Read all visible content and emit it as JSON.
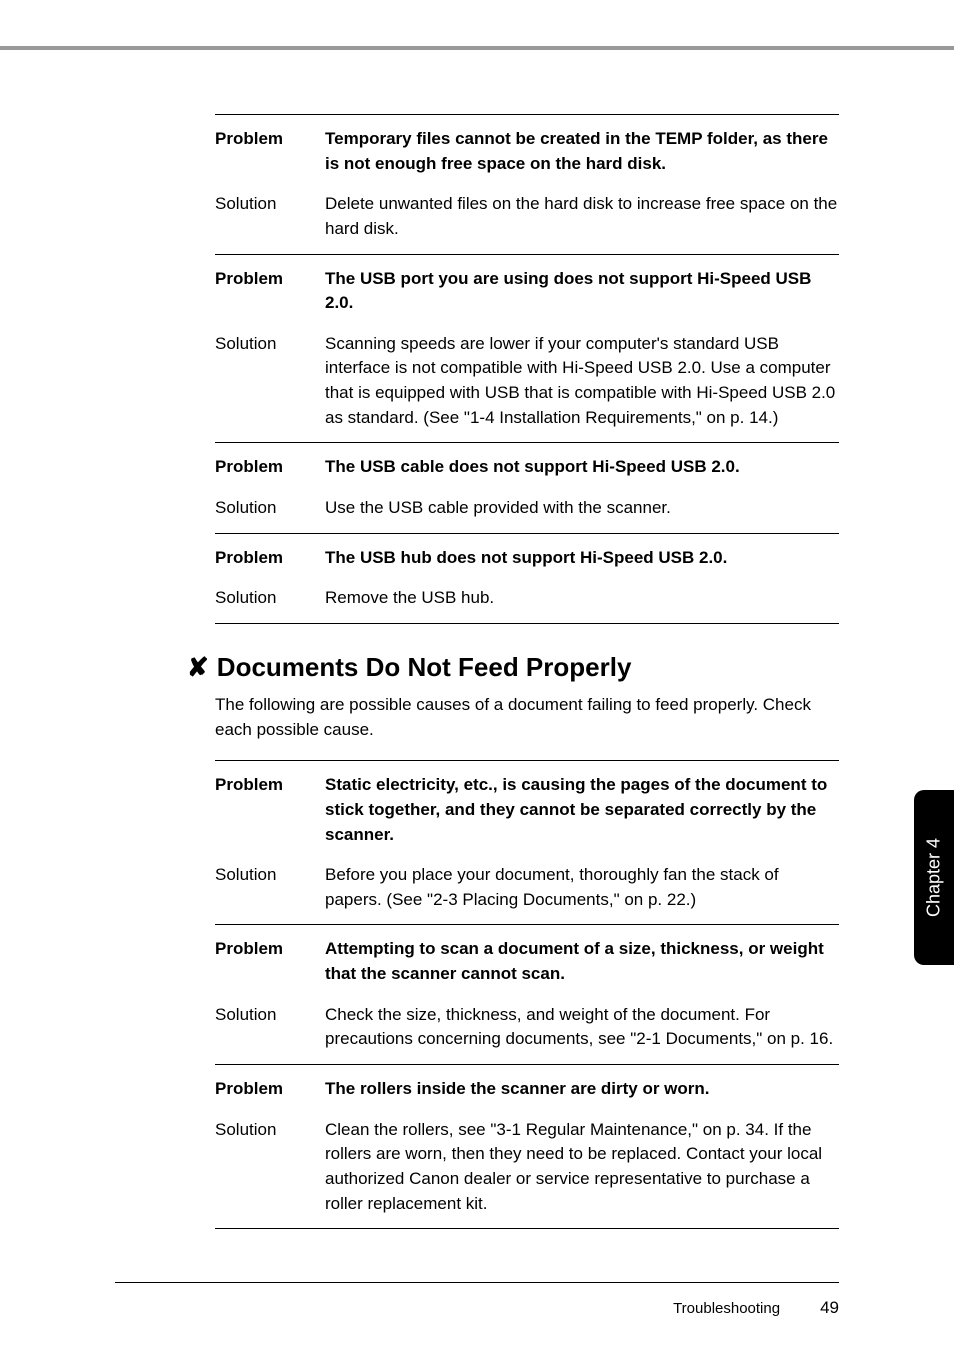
{
  "sideTab": "Chapter 4",
  "block1": {
    "rows": [
      {
        "type": "hr"
      },
      {
        "label": "Problem",
        "labelBold": true,
        "body": "Temporary files cannot be created in the TEMP folder, as there is not enough free space on the hard disk.",
        "bodyBold": true
      },
      {
        "label": "Solution",
        "labelBold": false,
        "body": "Delete unwanted files on the hard disk to increase free space on the hard disk.",
        "bodyBold": false
      },
      {
        "type": "hr"
      },
      {
        "label": "Problem",
        "labelBold": true,
        "body": "The USB port you are using does not support Hi-Speed USB 2.0.",
        "bodyBold": true
      },
      {
        "label": "Solution",
        "labelBold": false,
        "body": "Scanning speeds are lower if your computer's standard USB interface is not compatible with Hi-Speed USB 2.0. Use a computer that is equipped with USB that is compatible with Hi-Speed USB 2.0 as standard.  (See \"1-4 Installation Requirements,\" on p. 14.)",
        "bodyBold": false
      },
      {
        "type": "hr"
      },
      {
        "label": "Problem",
        "labelBold": true,
        "body": "The USB cable does not support Hi-Speed USB 2.0.",
        "bodyBold": true
      },
      {
        "label": "Solution",
        "labelBold": false,
        "body": "Use the USB cable provided with the scanner.",
        "bodyBold": false
      },
      {
        "type": "hr"
      },
      {
        "label": "Problem",
        "labelBold": true,
        "body": "The USB hub does not support Hi-Speed USB 2.0.",
        "bodyBold": true
      },
      {
        "label": "Solution",
        "labelBold": false,
        "body": "Remove the USB hub.",
        "bodyBold": false
      },
      {
        "type": "hr"
      }
    ]
  },
  "section": {
    "xMark": "✘",
    "heading": "Documents Do Not Feed Properly",
    "intro": "The following are possible causes of a document failing to feed properly. Check each possible cause."
  },
  "block2": {
    "rows": [
      {
        "type": "hr"
      },
      {
        "label": "Problem",
        "labelBold": true,
        "body": "Static electricity, etc., is causing the pages of the document to stick together, and they cannot be separated correctly by the scanner.",
        "bodyBold": true
      },
      {
        "label": "Solution",
        "labelBold": false,
        "body": "Before you place your document, thoroughly fan the stack of papers. (See \"2-3 Placing Documents,\" on p. 22.)",
        "bodyBold": false
      },
      {
        "type": "hr"
      },
      {
        "label": "Problem",
        "labelBold": true,
        "body": "Attempting to scan a document of a size, thickness, or weight that the scanner cannot scan.",
        "bodyBold": true
      },
      {
        "label": "Solution",
        "labelBold": false,
        "body": "Check the size, thickness, and weight of the document. For precautions concerning documents, see \"2-1 Documents,\" on p. 16.",
        "bodyBold": false
      },
      {
        "type": "hr"
      },
      {
        "label": "Problem",
        "labelBold": true,
        "body": "The rollers inside the scanner are dirty or worn.",
        "bodyBold": true
      },
      {
        "label": "Solution",
        "labelBold": false,
        "body": "Clean the rollers, see \"3-1 Regular Maintenance,\" on p. 34. If the rollers are worn, then they need to be replaced. Contact your local authorized Canon dealer or service representative to purchase a roller replacement kit.",
        "bodyBold": false
      },
      {
        "type": "hr"
      }
    ]
  },
  "footer": {
    "title": "Troubleshooting",
    "page": "49"
  }
}
